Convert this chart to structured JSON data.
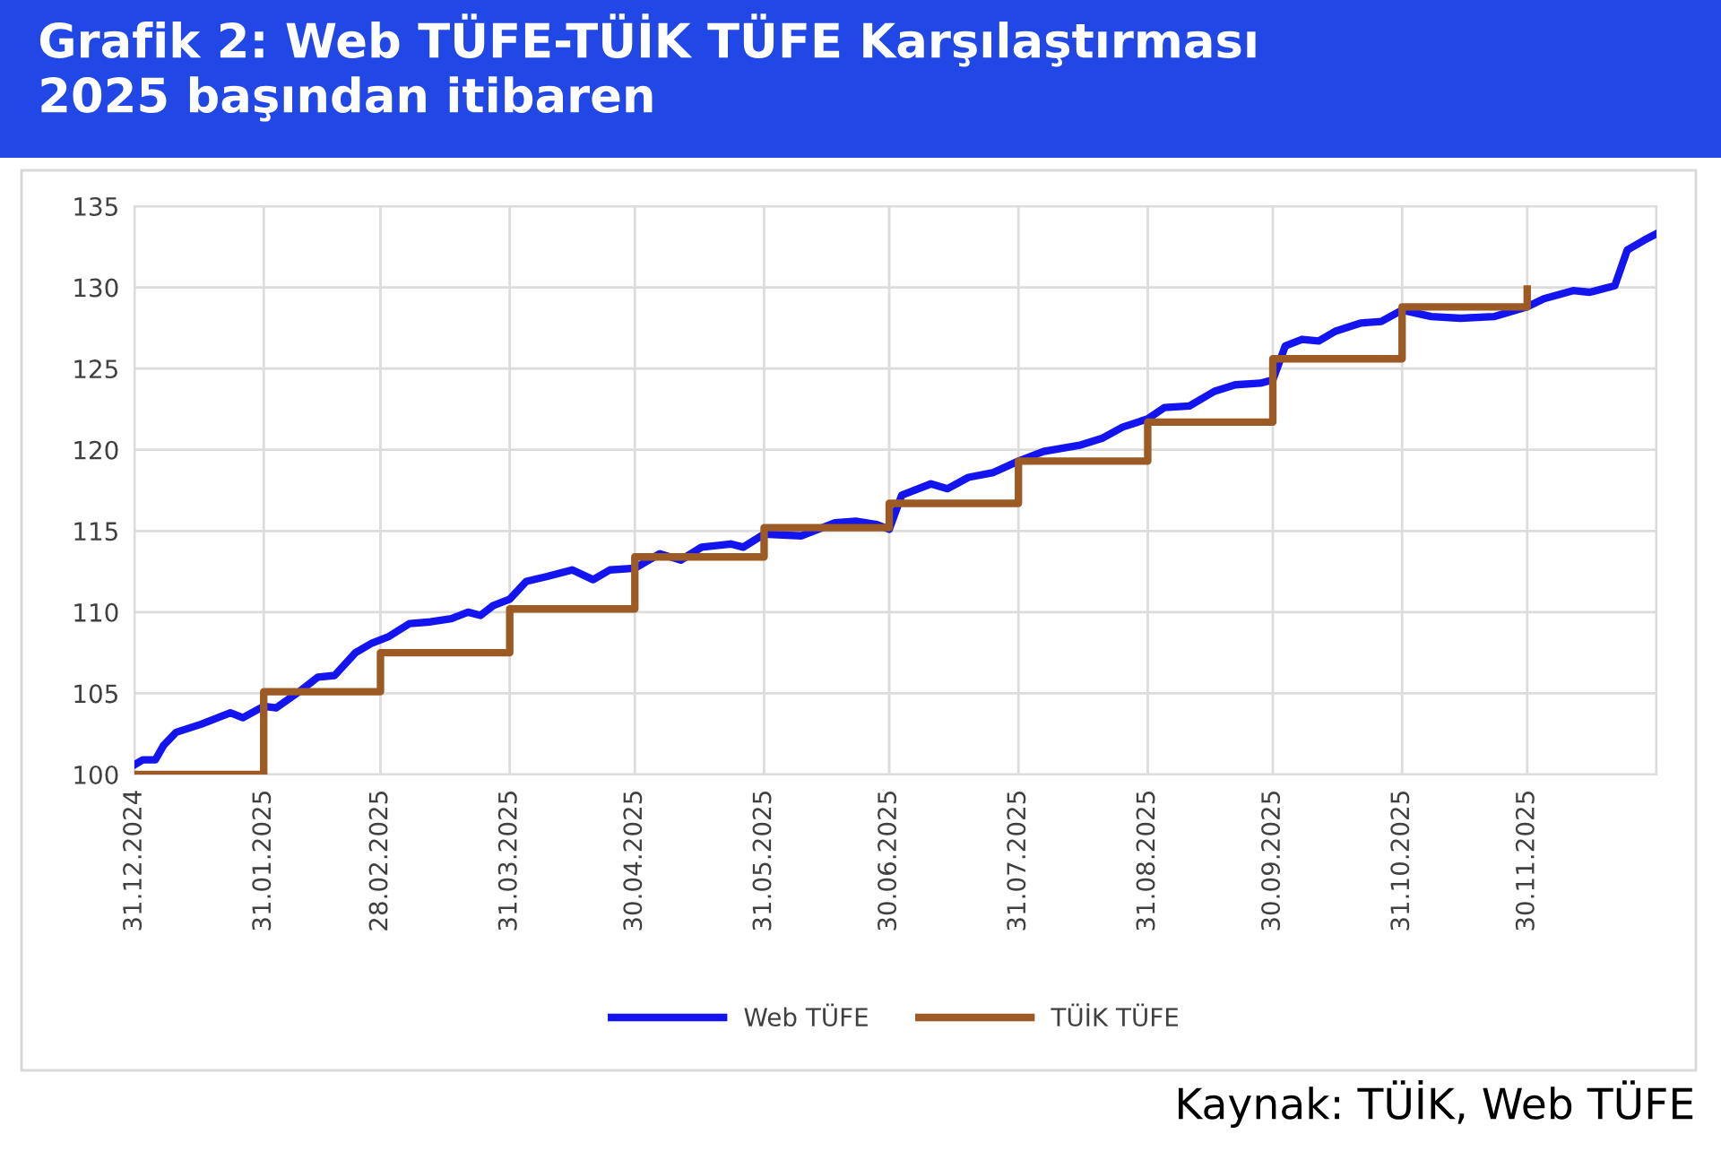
{
  "chart_data": {
    "type": "line",
    "title": "Grafik 2: Web TÜFE-TÜİK TÜFE Karşılaştırması\n2025 başından itibaren",
    "annotations": [
      "Kaynak: TÜİK, Web TÜFE"
    ],
    "xlim": [
      "2024-12-31",
      "2025-12-31"
    ],
    "xticks": [
      {
        "value": "2024-12-31",
        "label": "31.12.2024"
      },
      {
        "value": "2025-01-31",
        "label": "31.01.2025"
      },
      {
        "value": "2025-02-28",
        "label": "28.02.2025"
      },
      {
        "value": "2025-03-31",
        "label": "31.03.2025"
      },
      {
        "value": "2025-04-30",
        "label": "30.04.2025"
      },
      {
        "value": "2025-05-31",
        "label": "31.05.2025"
      },
      {
        "value": "2025-06-30",
        "label": "30.06.2025"
      },
      {
        "value": "2025-07-31",
        "label": "31.07.2025"
      },
      {
        "value": "2025-08-31",
        "label": "31.08.2025"
      },
      {
        "value": "2025-09-30",
        "label": "30.09.2025"
      },
      {
        "value": "2025-10-31",
        "label": "31.10.2025"
      },
      {
        "value": "2025-11-30",
        "label": "30.11.2025"
      },
      {
        "value": "2025-12-31",
        "label": null
      }
    ],
    "ylim": [
      100,
      135
    ],
    "yticks": [
      100,
      105,
      110,
      115,
      120,
      125,
      130,
      135
    ],
    "grid": true,
    "legend": "bottom",
    "series": [
      {
        "name": "Web TÜFE",
        "color": "#1414f0",
        "x": [
          "2024-12-31",
          "2025-01-02",
          "2025-01-05",
          "2025-01-07",
          "2025-01-10",
          "2025-01-16",
          "2025-01-23",
          "2025-01-26",
          "2025-01-31",
          "2025-02-03",
          "2025-02-09",
          "2025-02-13",
          "2025-02-17",
          "2025-02-22",
          "2025-02-26",
          "2025-03-02",
          "2025-03-07",
          "2025-03-12",
          "2025-03-17",
          "2025-03-21",
          "2025-03-24",
          "2025-03-27",
          "2025-03-31",
          "2025-04-04",
          "2025-04-09",
          "2025-04-15",
          "2025-04-20",
          "2025-04-24",
          "2025-04-30",
          "2025-05-06",
          "2025-05-11",
          "2025-05-16",
          "2025-05-23",
          "2025-05-26",
          "2025-05-31",
          "2025-06-09",
          "2025-06-17",
          "2025-06-22",
          "2025-06-27",
          "2025-06-30",
          "2025-07-03",
          "2025-07-10",
          "2025-07-14",
          "2025-07-19",
          "2025-07-25",
          "2025-07-31",
          "2025-08-06",
          "2025-08-15",
          "2025-08-20",
          "2025-08-25",
          "2025-08-31",
          "2025-09-04",
          "2025-09-10",
          "2025-09-16",
          "2025-09-21",
          "2025-09-27",
          "2025-09-30",
          "2025-10-03",
          "2025-10-07",
          "2025-10-11",
          "2025-10-15",
          "2025-10-21",
          "2025-10-26",
          "2025-10-31",
          "2025-11-07",
          "2025-11-14",
          "2025-11-22",
          "2025-11-30",
          "2025-12-04",
          "2025-12-11",
          "2025-12-15",
          "2025-12-21",
          "2025-12-24",
          "2025-12-28",
          "2025-12-31"
        ],
        "values": [
          100.6,
          100.9,
          100.9,
          101.8,
          102.6,
          103.1,
          103.8,
          103.5,
          104.2,
          104.1,
          105.2,
          106.0,
          106.1,
          107.5,
          108.1,
          108.5,
          109.3,
          109.4,
          109.6,
          110.0,
          109.8,
          110.4,
          110.8,
          111.9,
          112.2,
          112.6,
          112.0,
          112.6,
          112.7,
          113.6,
          113.2,
          114.0,
          114.2,
          114.0,
          114.8,
          114.7,
          115.5,
          115.6,
          115.4,
          115.1,
          117.2,
          117.9,
          117.6,
          118.3,
          118.6,
          119.3,
          119.9,
          120.3,
          120.7,
          121.4,
          121.9,
          122.6,
          122.7,
          123.6,
          124.0,
          124.1,
          124.3,
          126.4,
          126.8,
          126.7,
          127.3,
          127.8,
          127.9,
          128.6,
          128.2,
          128.1,
          128.2,
          128.8,
          129.3,
          129.8,
          129.7,
          130.1,
          132.3,
          132.9,
          133.3
        ]
      },
      {
        "name": "TÜİK TÜFE",
        "type": "step",
        "color": "#9c5a24",
        "x": [
          "2024-12-31",
          "2025-01-31",
          "2025-02-28",
          "2025-03-31",
          "2025-04-30",
          "2025-05-31",
          "2025-06-30",
          "2025-07-31",
          "2025-08-31",
          "2025-09-30",
          "2025-10-31",
          "2025-11-30"
        ],
        "values": [
          100,
          105.1,
          107.5,
          110.2,
          113.4,
          115.2,
          116.7,
          119.3,
          121.7,
          125.6,
          128.8,
          129.9
        ]
      }
    ]
  }
}
